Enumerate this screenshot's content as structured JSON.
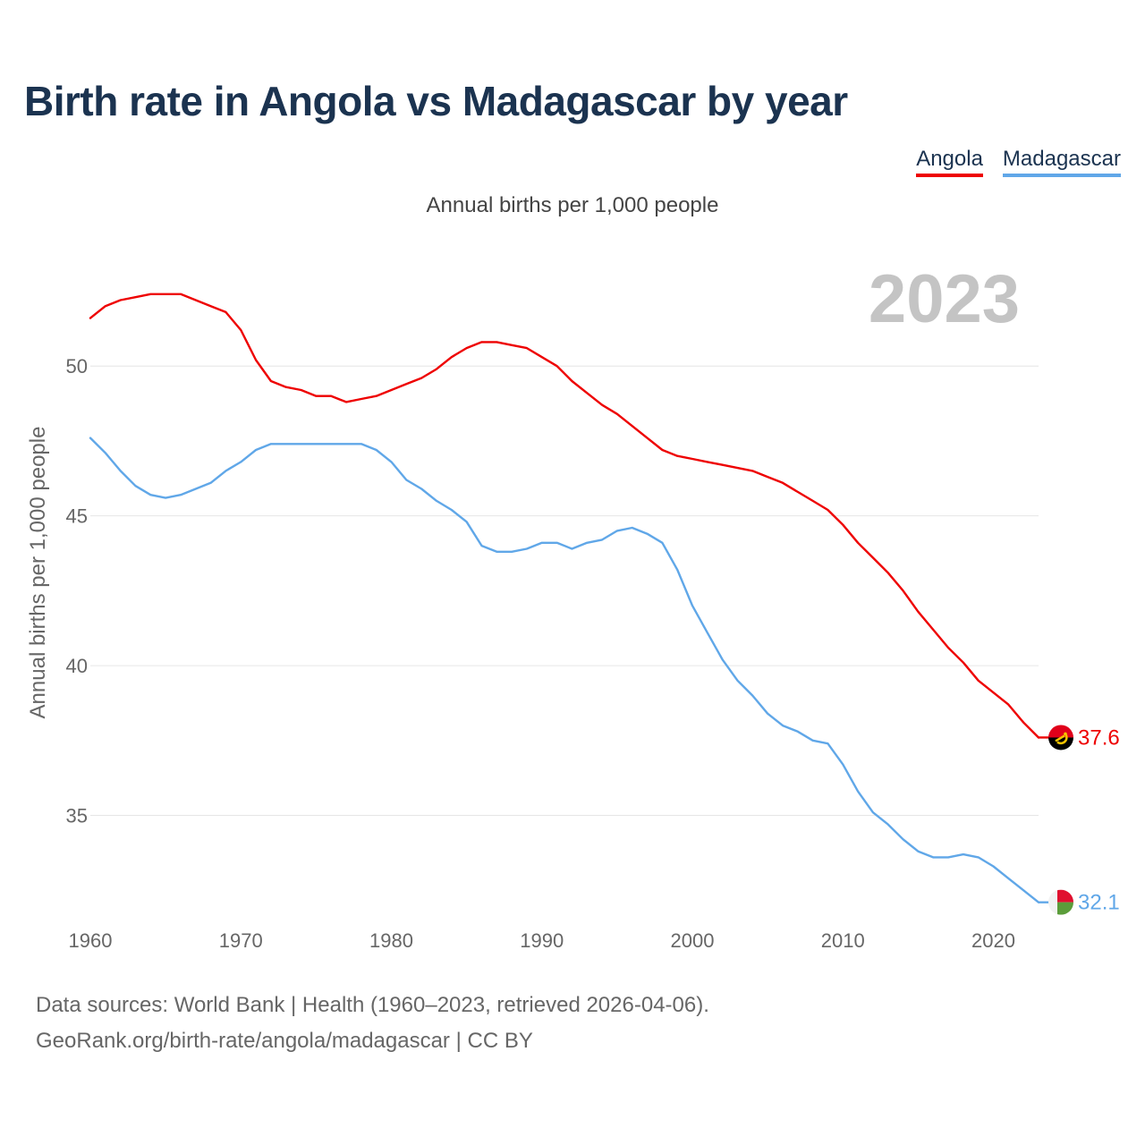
{
  "title": "Birth rate in Angola vs Madagascar by year",
  "subtitle": "Annual births per 1,000 people",
  "legend": [
    {
      "name": "Angola",
      "color": "#ee0000"
    },
    {
      "name": "Madagascar",
      "color": "#60a7e8"
    }
  ],
  "footer": {
    "line1": "Data sources: World Bank | Health (1960–2023, retrieved 2026-04-06).",
    "line2": "GeoRank.org/birth-rate/angola/madagascar | CC BY"
  },
  "chart_data": {
    "type": "line",
    "title": "Birth rate in Angola vs Madagascar by year",
    "xlabel": "",
    "ylabel": "Annual births per 1,000 people",
    "xlim": [
      1960,
      2023
    ],
    "ylim": [
      32,
      53.5
    ],
    "x_ticks": [
      1960,
      1970,
      1980,
      1990,
      2000,
      2010,
      2020
    ],
    "y_ticks": [
      35,
      40,
      45,
      50
    ],
    "grid": true,
    "year_label": "2023",
    "x": [
      1960,
      1961,
      1962,
      1963,
      1964,
      1965,
      1966,
      1967,
      1968,
      1969,
      1970,
      1971,
      1972,
      1973,
      1974,
      1975,
      1976,
      1977,
      1978,
      1979,
      1980,
      1981,
      1982,
      1983,
      1984,
      1985,
      1986,
      1987,
      1988,
      1989,
      1990,
      1991,
      1992,
      1993,
      1994,
      1995,
      1996,
      1997,
      1998,
      1999,
      2000,
      2001,
      2002,
      2003,
      2004,
      2005,
      2006,
      2007,
      2008,
      2009,
      2010,
      2011,
      2012,
      2013,
      2014,
      2015,
      2016,
      2017,
      2018,
      2019,
      2020,
      2021,
      2022,
      2023
    ],
    "series": [
      {
        "name": "Angola",
        "color": "#ee0000",
        "end_label": "37.6",
        "values": [
          51.6,
          52.0,
          52.2,
          52.3,
          52.4,
          52.4,
          52.4,
          52.2,
          52.0,
          51.8,
          51.2,
          50.2,
          49.5,
          49.3,
          49.2,
          49.0,
          49.0,
          48.8,
          48.9,
          49.0,
          49.2,
          49.4,
          49.6,
          49.9,
          50.3,
          50.6,
          50.8,
          50.8,
          50.7,
          50.6,
          50.3,
          50.0,
          49.5,
          49.1,
          48.7,
          48.4,
          48.0,
          47.6,
          47.2,
          47.0,
          46.9,
          46.8,
          46.7,
          46.6,
          46.5,
          46.3,
          46.1,
          45.8,
          45.5,
          45.2,
          44.7,
          44.1,
          43.6,
          43.1,
          42.5,
          41.8,
          41.2,
          40.6,
          40.1,
          39.5,
          39.1,
          38.7,
          38.1,
          37.6
        ]
      },
      {
        "name": "Madagascar",
        "color": "#60a7e8",
        "end_label": "32.1",
        "values": [
          47.6,
          47.1,
          46.5,
          46.0,
          45.7,
          45.6,
          45.7,
          45.9,
          46.1,
          46.5,
          46.8,
          47.2,
          47.4,
          47.4,
          47.4,
          47.4,
          47.4,
          47.4,
          47.4,
          47.2,
          46.8,
          46.2,
          45.9,
          45.5,
          45.2,
          44.8,
          44.0,
          43.8,
          43.8,
          43.9,
          44.1,
          44.1,
          43.9,
          44.1,
          44.2,
          44.5,
          44.6,
          44.4,
          44.1,
          43.2,
          42.0,
          41.1,
          40.2,
          39.5,
          39.0,
          38.4,
          38.0,
          37.8,
          37.5,
          37.4,
          36.7,
          35.8,
          35.1,
          34.7,
          34.2,
          33.8,
          33.6,
          33.6,
          33.7,
          33.6,
          33.3,
          32.9,
          32.5,
          32.1
        ]
      }
    ]
  }
}
